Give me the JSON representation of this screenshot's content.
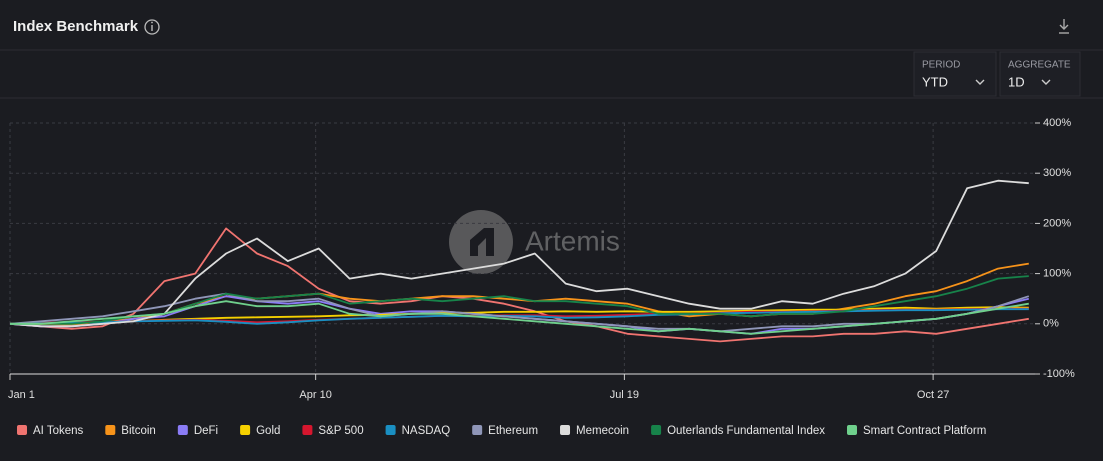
{
  "header": {
    "title": "Index Benchmark"
  },
  "controls": {
    "period_label": "PERIOD",
    "period": "YTD",
    "aggregate_label": "AGGREGATE",
    "aggregate": "1D"
  },
  "watermark": "Artemis",
  "chart_data": {
    "type": "line",
    "x": [
      0,
      10,
      20,
      30,
      40,
      50,
      60,
      70,
      80,
      90,
      100,
      110,
      120,
      130,
      140,
      150,
      160,
      170,
      180,
      190,
      200,
      210,
      220,
      230,
      240,
      250,
      260,
      270,
      280,
      290,
      300,
      310,
      320,
      330
    ],
    "xlim": [
      0,
      332
    ],
    "xticks": [
      {
        "value": 0,
        "label": "Jan 1"
      },
      {
        "value": 99,
        "label": "Apr 10"
      },
      {
        "value": 199,
        "label": "Jul 19"
      },
      {
        "value": 299,
        "label": "Oct 27"
      }
    ],
    "ylim": [
      -100,
      400
    ],
    "yticks": [
      {
        "value": -100,
        "label": "-100%"
      },
      {
        "value": 0,
        "label": "0%"
      },
      {
        "value": 100,
        "label": "100%"
      },
      {
        "value": 200,
        "label": "200%"
      },
      {
        "value": 300,
        "label": "300%"
      },
      {
        "value": 400,
        "label": "400%"
      }
    ],
    "grid": true,
    "series": [
      {
        "name": "AI Tokens",
        "color": "#f07470",
        "values": [
          0,
          -5,
          -10,
          -5,
          20,
          85,
          100,
          190,
          140,
          115,
          70,
          45,
          40,
          45,
          55,
          50,
          40,
          25,
          5,
          -5,
          -20,
          -25,
          -30,
          -35,
          -30,
          -25,
          -25,
          -20,
          -20,
          -15,
          -20,
          -10,
          0,
          10
        ]
      },
      {
        "name": "Bitcoin",
        "color": "#f7931a",
        "values": [
          0,
          0,
          -2,
          5,
          10,
          20,
          40,
          55,
          50,
          55,
          60,
          50,
          45,
          50,
          55,
          55,
          50,
          45,
          50,
          45,
          40,
          25,
          15,
          20,
          15,
          20,
          20,
          30,
          40,
          55,
          65,
          85,
          110,
          120
        ]
      },
      {
        "name": "DeFi",
        "color": "#8b7cf6",
        "values": [
          0,
          -5,
          -5,
          0,
          10,
          15,
          35,
          55,
          45,
          40,
          45,
          30,
          20,
          25,
          25,
          20,
          15,
          10,
          5,
          0,
          -5,
          -15,
          -10,
          -15,
          -20,
          -10,
          -10,
          -5,
          0,
          5,
          10,
          20,
          35,
          50
        ]
      },
      {
        "name": "Gold",
        "color": "#f5d000",
        "values": [
          0,
          0,
          2,
          3,
          5,
          8,
          10,
          12,
          13,
          14,
          15,
          17,
          18,
          20,
          22,
          22,
          24,
          24,
          25,
          24,
          25,
          24,
          24,
          25,
          26,
          27,
          28,
          28,
          30,
          32,
          30,
          32,
          33,
          32
        ]
      },
      {
        "name": "S&P 500",
        "color": "#d6162e",
        "values": [
          0,
          2,
          3,
          4,
          5,
          7,
          8,
          6,
          3,
          5,
          8,
          10,
          12,
          14,
          16,
          16,
          17,
          17,
          15,
          16,
          18,
          20,
          20,
          22,
          24,
          24,
          25,
          26,
          27,
          28,
          28,
          29,
          30,
          30
        ]
      },
      {
        "name": "NASDAQ",
        "color": "#1a8fc2",
        "values": [
          0,
          1,
          2,
          3,
          5,
          6,
          7,
          4,
          0,
          3,
          7,
          10,
          12,
          14,
          16,
          15,
          16,
          15,
          12,
          13,
          15,
          18,
          19,
          21,
          22,
          23,
          24,
          25,
          26,
          27,
          27,
          28,
          29,
          29
        ]
      },
      {
        "name": "Ethereum",
        "color": "#8f96b8",
        "values": [
          0,
          5,
          10,
          15,
          25,
          35,
          50,
          60,
          45,
          45,
          50,
          30,
          15,
          20,
          25,
          20,
          15,
          10,
          5,
          0,
          -5,
          -10,
          -10,
          -15,
          -10,
          -5,
          -5,
          0,
          0,
          5,
          10,
          20,
          35,
          55
        ]
      },
      {
        "name": "Memecoin",
        "color": "#dcdcdc",
        "values": [
          0,
          -5,
          -5,
          0,
          5,
          20,
          90,
          140,
          170,
          125,
          150,
          90,
          100,
          90,
          100,
          110,
          120,
          140,
          80,
          65,
          70,
          55,
          40,
          30,
          30,
          45,
          40,
          60,
          75,
          100,
          145,
          270,
          285,
          280
        ]
      },
      {
        "name": "Outerlands Fundamental Index",
        "color": "#17834a",
        "values": [
          0,
          0,
          0,
          5,
          15,
          20,
          40,
          60,
          50,
          55,
          60,
          40,
          45,
          50,
          45,
          50,
          55,
          45,
          45,
          40,
          35,
          20,
          20,
          20,
          15,
          20,
          20,
          25,
          35,
          45,
          55,
          70,
          90,
          95
        ]
      },
      {
        "name": "Smart Contract Platform",
        "color": "#6fd08c",
        "values": [
          0,
          0,
          5,
          10,
          15,
          20,
          35,
          45,
          35,
          35,
          40,
          20,
          15,
          20,
          20,
          15,
          10,
          5,
          0,
          -5,
          -10,
          -15,
          -10,
          -15,
          -20,
          -15,
          -10,
          -5,
          0,
          5,
          10,
          20,
          30,
          40
        ]
      }
    ]
  }
}
